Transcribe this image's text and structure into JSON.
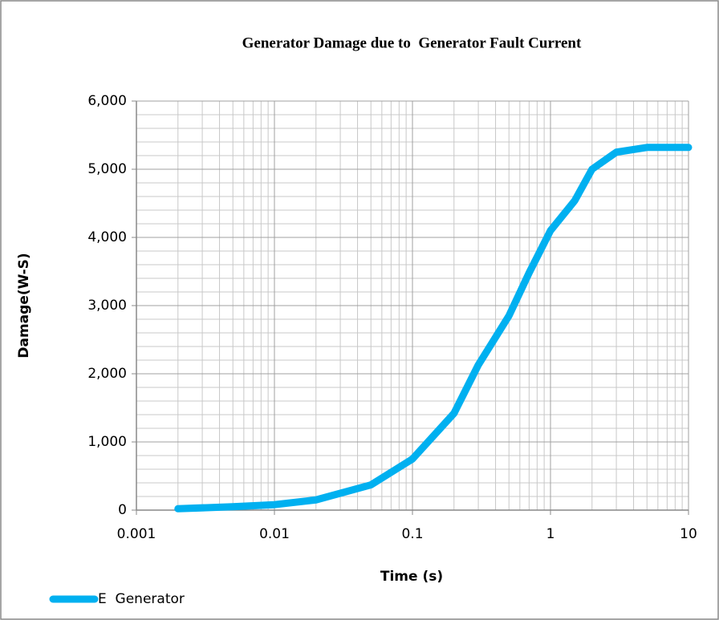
{
  "chart_data": {
    "type": "line",
    "title": "Generator Damage due to  Generator Fault Current",
    "x_label": "Time (s)",
    "y_label": "Damage(W-S)",
    "x_scale": "log",
    "grid": true,
    "legend": "bottom-left",
    "xlim": [
      0.001,
      10
    ],
    "xticks": [
      0.001,
      0.01,
      0.1,
      1,
      10
    ],
    "ylim": [
      0,
      6000
    ],
    "yticks": [
      {
        "value": 0,
        "label": "0"
      },
      {
        "value": 1000,
        "label": "1,000"
      },
      {
        "value": 2000,
        "label": "2,000"
      },
      {
        "value": 3000,
        "label": "3,000"
      },
      {
        "value": 4000,
        "label": "4,000"
      },
      {
        "value": 5000,
        "label": "5,000"
      },
      {
        "value": 6000,
        "label": "6,000"
      }
    ],
    "x": [
      0.002,
      0.005,
      0.01,
      0.02,
      0.05,
      0.1,
      0.2,
      0.3,
      0.5,
      0.7,
      1,
      1.5,
      2,
      3,
      5,
      10
    ],
    "series": [
      {
        "name": "E  Generator",
        "color": "#00b0f0",
        "values": [
          20,
          50,
          80,
          150,
          370,
          750,
          1420,
          2130,
          2850,
          3480,
          4100,
          4540,
          5000,
          5250,
          5320,
          5320
        ]
      }
    ]
  }
}
